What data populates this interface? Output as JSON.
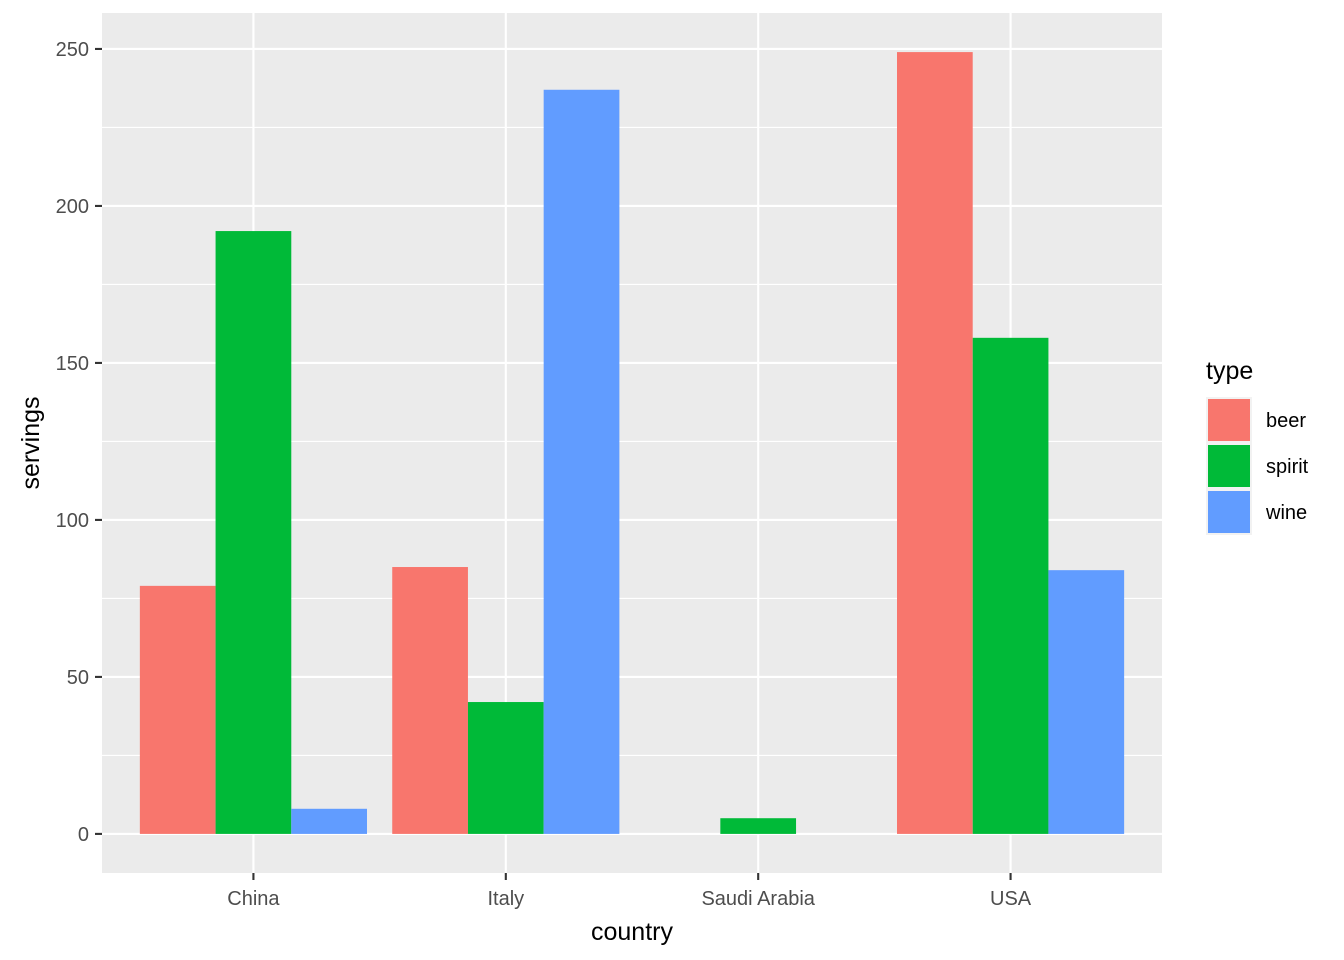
{
  "chart_data": {
    "type": "bar",
    "xlabel": "country",
    "ylabel": "servings",
    "categories": [
      "China",
      "Italy",
      "Saudi Arabia",
      "USA"
    ],
    "series": [
      {
        "name": "beer",
        "values": [
          79,
          85,
          0,
          249
        ],
        "color": "#F8766D"
      },
      {
        "name": "spirit",
        "values": [
          192,
          42,
          5,
          158
        ],
        "color": "#00BA38"
      },
      {
        "name": "wine",
        "values": [
          8,
          237,
          0,
          84
        ],
        "color": "#619CFF"
      }
    ],
    "ylim": [
      -12.45,
      261.45
    ],
    "yticks": [
      0,
      50,
      100,
      150,
      200,
      250
    ],
    "grid": true,
    "legend": {
      "title": "type",
      "position": "right"
    },
    "colors": {
      "panel_background": "#EBEBEB",
      "grid_line": "#FFFFFF"
    }
  }
}
